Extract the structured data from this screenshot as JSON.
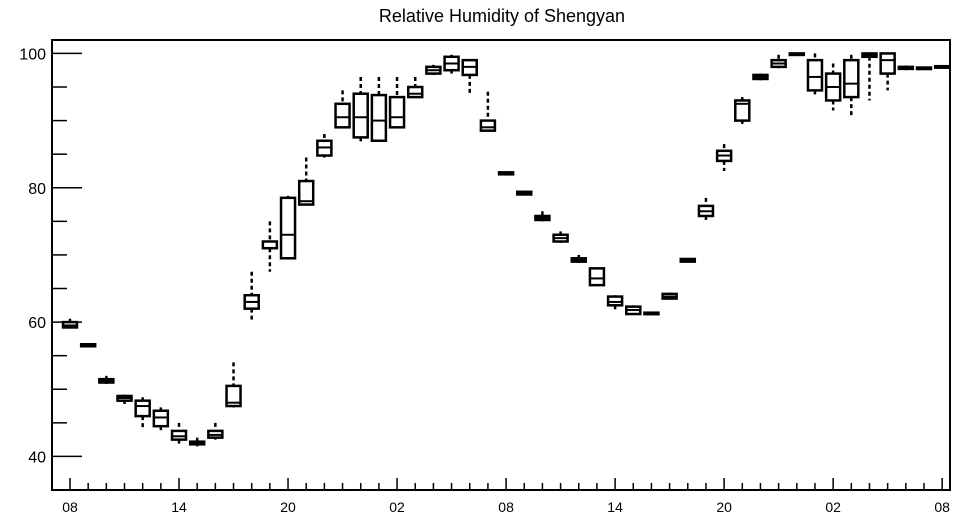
{
  "chart_data": {
    "type": "box",
    "title": "Relative Humidity of Shengyan",
    "xlabel": "",
    "ylabel": "",
    "x_tick_labels": [
      "08",
      "14",
      "20",
      "02",
      "08",
      "14",
      "20",
      "02",
      "08"
    ],
    "y_tick_labels": [
      "40",
      "60",
      "80",
      "100"
    ],
    "ylim": [
      35,
      102
    ],
    "y_major_ticks": [
      40,
      60,
      80,
      100
    ],
    "grid": false,
    "legend": "none",
    "box_color": "#000000",
    "boxes": [
      {
        "hour": 0,
        "min": 59.2,
        "q1": 59.2,
        "median": 59.5,
        "q3": 60.0,
        "max": 60.5
      },
      {
        "hour": 1,
        "min": 56.4,
        "q1": 56.4,
        "median": 56.6,
        "q3": 56.7,
        "max": 56.8
      },
      {
        "hour": 2,
        "min": 50.8,
        "q1": 51.0,
        "median": 51.3,
        "q3": 51.5,
        "max": 52.0
      },
      {
        "hour": 3,
        "min": 47.8,
        "q1": 48.3,
        "median": 48.7,
        "q3": 49.0,
        "max": 49.2
      },
      {
        "hour": 4,
        "min": 44.0,
        "q1": 46.0,
        "median": 47.5,
        "q3": 48.3,
        "max": 48.8
      },
      {
        "hour": 5,
        "min": 43.5,
        "q1": 44.5,
        "median": 45.8,
        "q3": 46.8,
        "max": 47.3
      },
      {
        "hour": 6,
        "min": 41.5,
        "q1": 42.5,
        "median": 43.0,
        "q3": 43.8,
        "max": 45.0
      },
      {
        "hour": 7,
        "min": 41.5,
        "q1": 41.8,
        "median": 42.0,
        "q3": 42.2,
        "max": 42.8
      },
      {
        "hour": 8,
        "min": 42.5,
        "q1": 42.8,
        "median": 43.2,
        "q3": 43.8,
        "max": 45.0
      },
      {
        "hour": 9,
        "min": 47.3,
        "q1": 47.5,
        "median": 48.0,
        "q3": 50.5,
        "max": 54.0
      },
      {
        "hour": 10,
        "min": 60.0,
        "q1": 62.0,
        "median": 63.0,
        "q3": 64.0,
        "max": 67.5
      },
      {
        "hour": 11,
        "min": 67.5,
        "q1": 71.0,
        "median": 72.0,
        "q3": 72.0,
        "max": 75.0
      },
      {
        "hour": 12,
        "min": 69.5,
        "q1": 69.5,
        "median": 73.0,
        "q3": 78.5,
        "max": 78.8
      },
      {
        "hour": 13,
        "min": 77.5,
        "q1": 77.5,
        "median": 78.0,
        "q3": 81.0,
        "max": 84.5
      },
      {
        "hour": 14,
        "min": 84.5,
        "q1": 84.8,
        "median": 86.0,
        "q3": 87.0,
        "max": 88.0
      },
      {
        "hour": 15,
        "min": 89.0,
        "q1": 89.0,
        "median": 90.5,
        "q3": 92.5,
        "max": 94.5
      },
      {
        "hour": 16,
        "min": 86.5,
        "q1": 87.5,
        "median": 90.5,
        "q3": 94.0,
        "max": 96.5
      },
      {
        "hour": 17,
        "min": 87.0,
        "q1": 87.0,
        "median": 90.0,
        "q3": 93.8,
        "max": 96.5
      },
      {
        "hour": 18,
        "min": 89.0,
        "q1": 89.0,
        "median": 90.5,
        "q3": 93.5,
        "max": 96.5
      },
      {
        "hour": 19,
        "min": 93.5,
        "q1": 93.5,
        "median": 94.0,
        "q3": 95.0,
        "max": 96.5
      },
      {
        "hour": 20,
        "min": 96.8,
        "q1": 97.0,
        "median": 97.5,
        "q3": 98.0,
        "max": 98.3
      },
      {
        "hour": 21,
        "min": 97.0,
        "q1": 97.5,
        "median": 98.5,
        "q3": 99.5,
        "max": 99.8
      },
      {
        "hour": 22,
        "min": 93.8,
        "q1": 96.8,
        "median": 98.0,
        "q3": 99.0,
        "max": 99.0
      },
      {
        "hour": 23,
        "min": 88.5,
        "q1": 88.5,
        "median": 89.0,
        "q3": 90.0,
        "max": 94.3
      },
      {
        "hour": 24,
        "min": 82.0,
        "q1": 82.0,
        "median": 82.2,
        "q3": 82.3,
        "max": 82.4
      },
      {
        "hour": 25,
        "min": 78.9,
        "q1": 79.0,
        "median": 79.2,
        "q3": 79.4,
        "max": 79.5
      },
      {
        "hour": 26,
        "min": 75.0,
        "q1": 75.2,
        "median": 75.5,
        "q3": 75.8,
        "max": 76.5
      },
      {
        "hour": 27,
        "min": 71.8,
        "q1": 72.0,
        "median": 72.5,
        "q3": 73.0,
        "max": 73.5
      },
      {
        "hour": 28,
        "min": 68.8,
        "q1": 69.0,
        "median": 69.2,
        "q3": 69.5,
        "max": 70.0
      },
      {
        "hour": 29,
        "min": 65.5,
        "q1": 65.5,
        "median": 66.5,
        "q3": 68.0,
        "max": 68.0
      },
      {
        "hour": 30,
        "min": 61.5,
        "q1": 62.5,
        "median": 63.0,
        "q3": 63.8,
        "max": 64.0
      },
      {
        "hour": 31,
        "min": 61.2,
        "q1": 61.2,
        "median": 61.8,
        "q3": 62.3,
        "max": 62.5
      },
      {
        "hour": 32,
        "min": 61.1,
        "q1": 61.2,
        "median": 61.3,
        "q3": 61.4,
        "max": 61.5
      },
      {
        "hour": 33,
        "min": 63.4,
        "q1": 63.5,
        "median": 63.8,
        "q3": 64.2,
        "max": 64.4
      },
      {
        "hour": 34,
        "min": 68.9,
        "q1": 69.0,
        "median": 69.2,
        "q3": 69.4,
        "max": 69.5
      },
      {
        "hour": 35,
        "min": 75.2,
        "q1": 75.8,
        "median": 76.5,
        "q3": 77.3,
        "max": 78.5
      },
      {
        "hour": 36,
        "min": 82.5,
        "q1": 84.0,
        "median": 84.8,
        "q3": 85.5,
        "max": 86.5
      },
      {
        "hour": 37,
        "min": 89.5,
        "q1": 90.0,
        "median": 92.5,
        "q3": 93.0,
        "max": 93.5
      },
      {
        "hour": 38,
        "min": 96.0,
        "q1": 96.2,
        "median": 96.5,
        "q3": 96.8,
        "max": 97.0
      },
      {
        "hour": 39,
        "min": 97.8,
        "q1": 98.0,
        "median": 98.5,
        "q3": 99.0,
        "max": 99.8
      },
      {
        "hour": 40,
        "min": 99.8,
        "q1": 99.9,
        "median": 100.0,
        "q3": 100.0,
        "max": 100.0
      },
      {
        "hour": 41,
        "min": 93.5,
        "q1": 94.5,
        "median": 96.5,
        "q3": 99.0,
        "max": 100.0
      },
      {
        "hour": 42,
        "min": 91.5,
        "q1": 93.0,
        "median": 95.0,
        "q3": 97.0,
        "max": 98.5
      },
      {
        "hour": 43,
        "min": 90.8,
        "q1": 93.5,
        "median": 95.5,
        "q3": 99.0,
        "max": 99.8
      },
      {
        "hour": 44,
        "min": 93.0,
        "q1": 99.5,
        "median": 99.8,
        "q3": 100.0,
        "max": 100.0
      },
      {
        "hour": 45,
        "min": 94.5,
        "q1": 97.0,
        "median": 99.0,
        "q3": 100.0,
        "max": 100.0
      },
      {
        "hour": 46,
        "min": 97.5,
        "q1": 97.7,
        "median": 97.8,
        "q3": 98.0,
        "max": 98.2
      },
      {
        "hour": 47,
        "min": 97.6,
        "q1": 97.7,
        "median": 97.8,
        "q3": 97.9,
        "max": 98.0
      },
      {
        "hour": 48,
        "min": 97.8,
        "q1": 97.9,
        "median": 98.0,
        "q3": 98.1,
        "max": 98.2
      }
    ]
  }
}
